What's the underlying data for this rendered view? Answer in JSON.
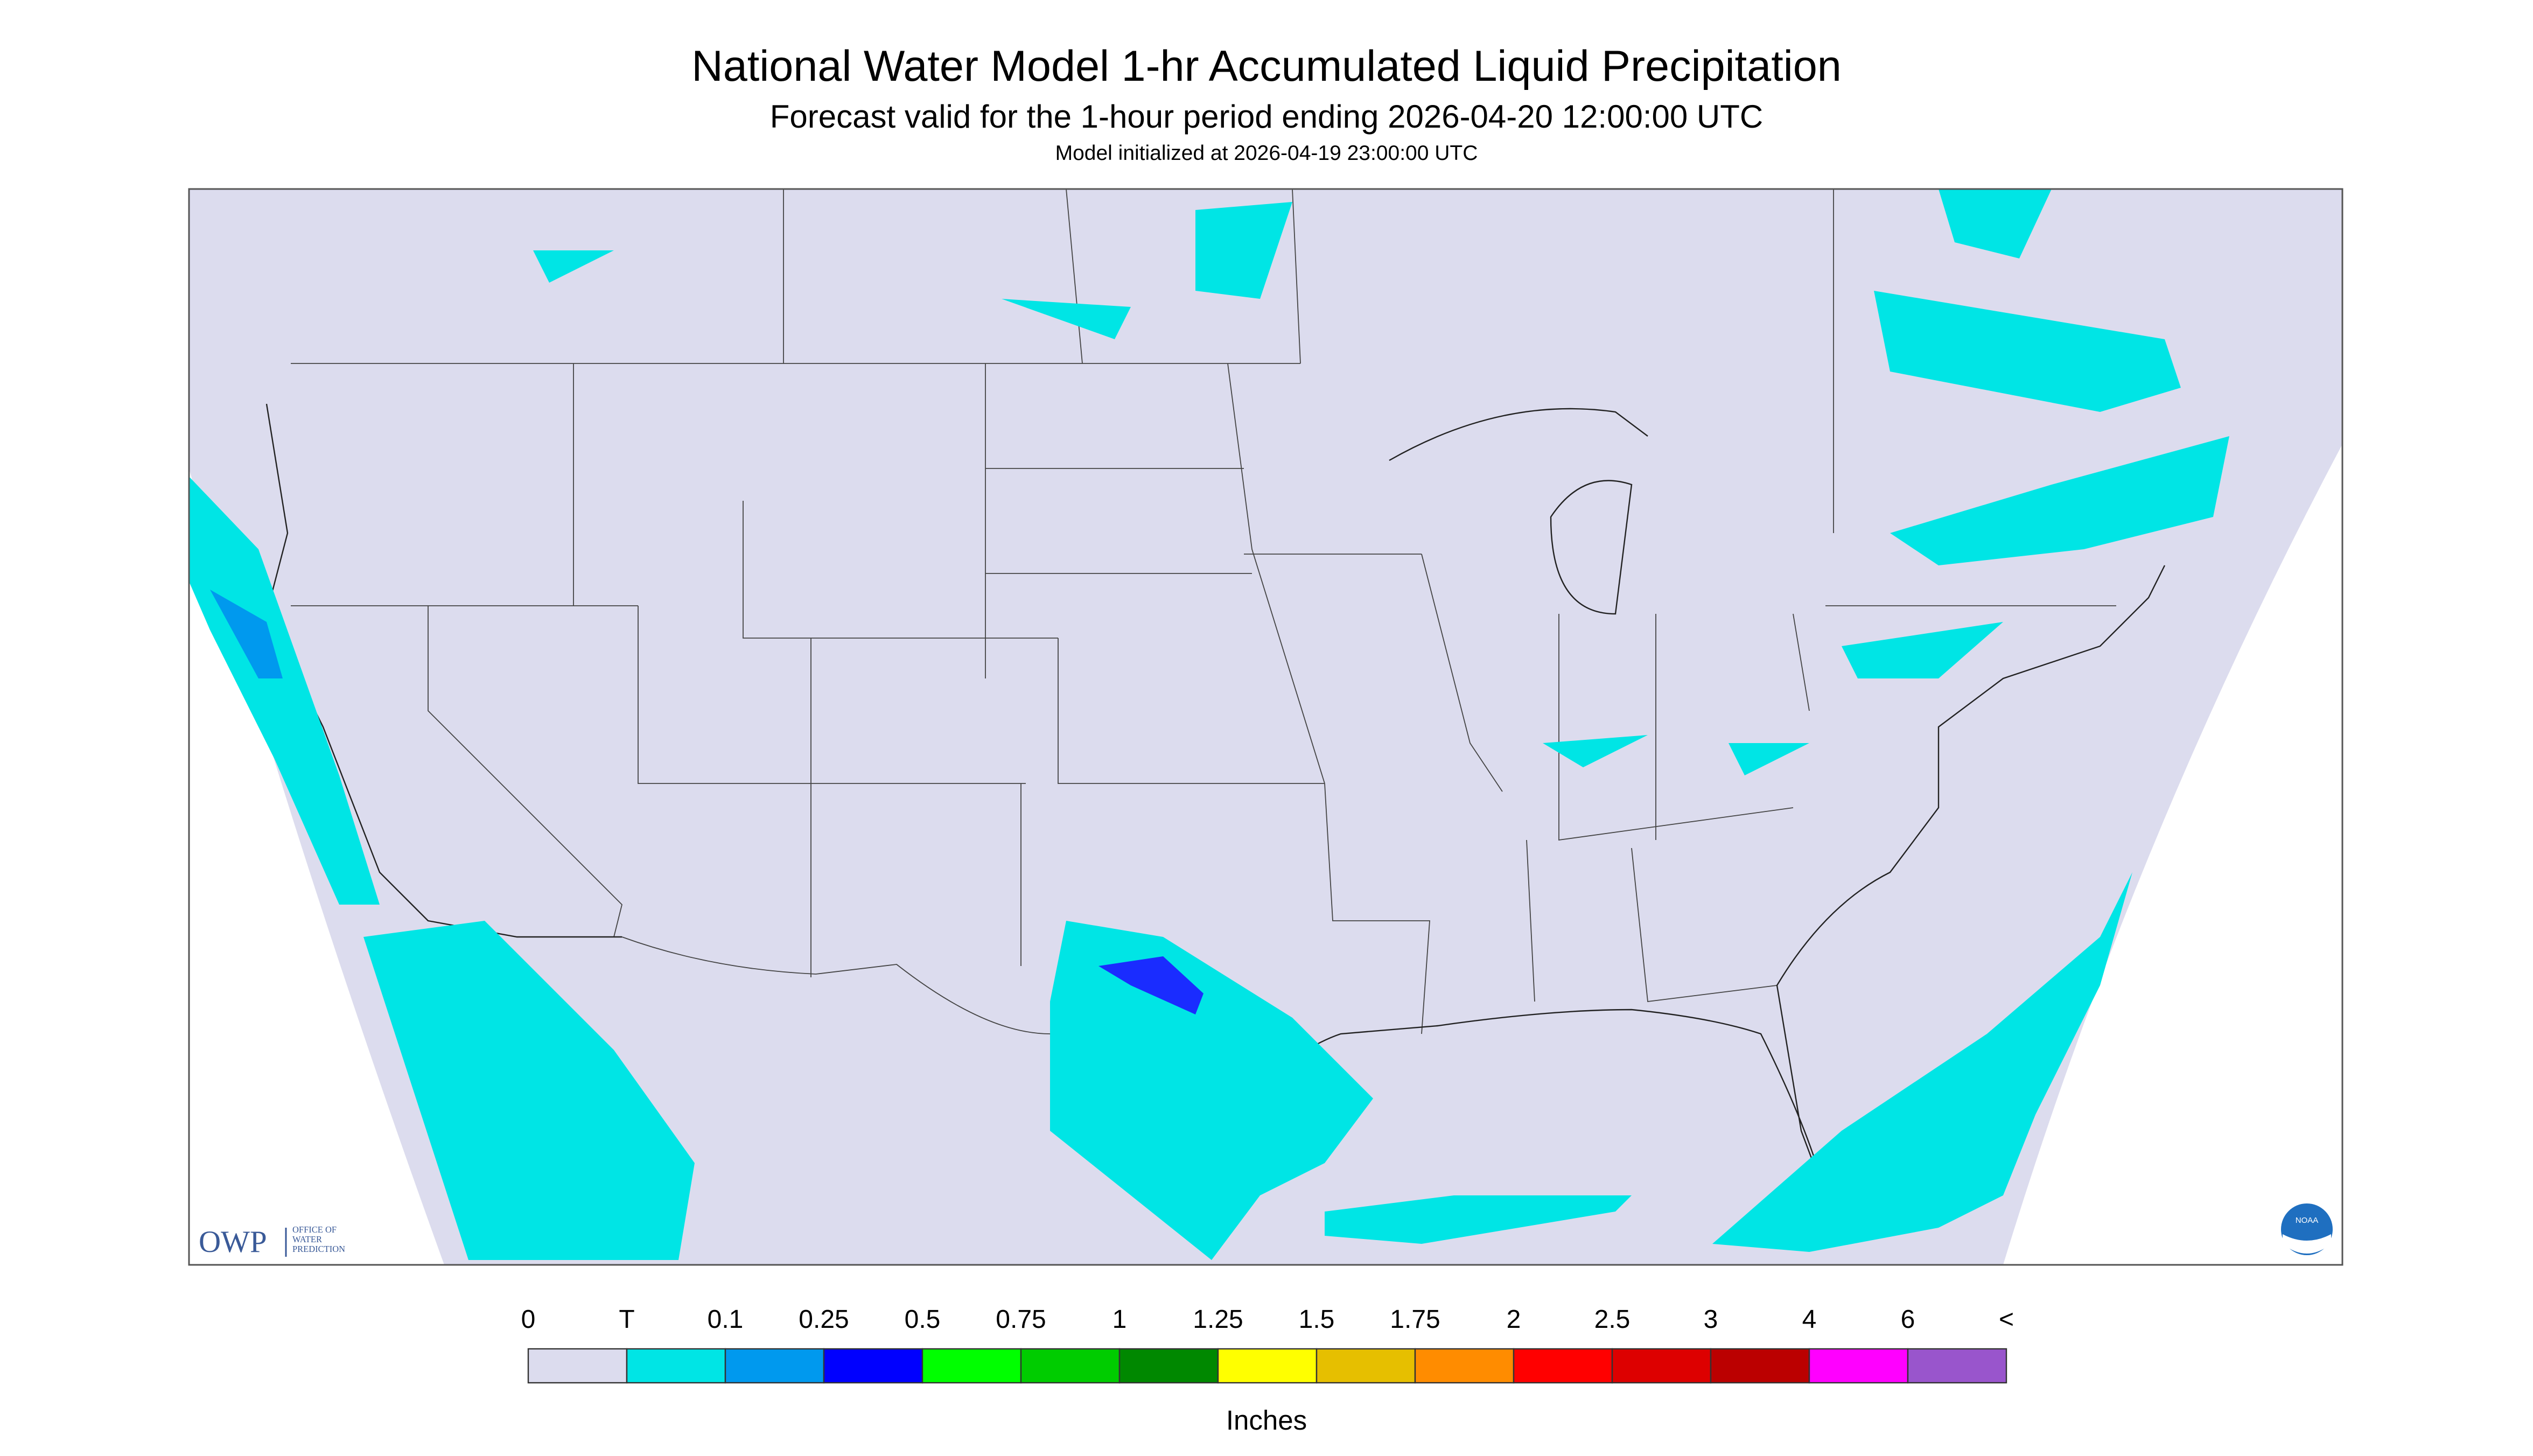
{
  "header": {
    "title": "National Water Model 1-hr Accumulated Liquid Precipitation",
    "subtitle": "Forecast valid for the 1-hour period ending 2026-04-20 12:00:00 UTC",
    "note": "Model initialized at 2026-04-19 23:00:00 UTC"
  },
  "logos": {
    "owp": "OWP",
    "owp_name": [
      "OFFICE OF",
      "WATER",
      "PREDICTION"
    ],
    "noaa": "NOAA"
  },
  "legend": {
    "labels": [
      "0",
      "T",
      "0.1",
      "0.25",
      "0.5",
      "0.75",
      "1",
      "1.25",
      "1.5",
      "1.75",
      "2",
      "2.5",
      "3",
      "4",
      "6",
      "<"
    ],
    "colors": [
      "#dcdcee",
      "#00e5e5",
      "#0099ee",
      "#0000ff",
      "#00ff00",
      "#00cc00",
      "#008800",
      "#ffff00",
      "#e6bf00",
      "#ff8c00",
      "#ff0000",
      "#dd0000",
      "#bb0000",
      "#ff00ff",
      "#9955cc"
    ],
    "unit": "Inches"
  }
}
